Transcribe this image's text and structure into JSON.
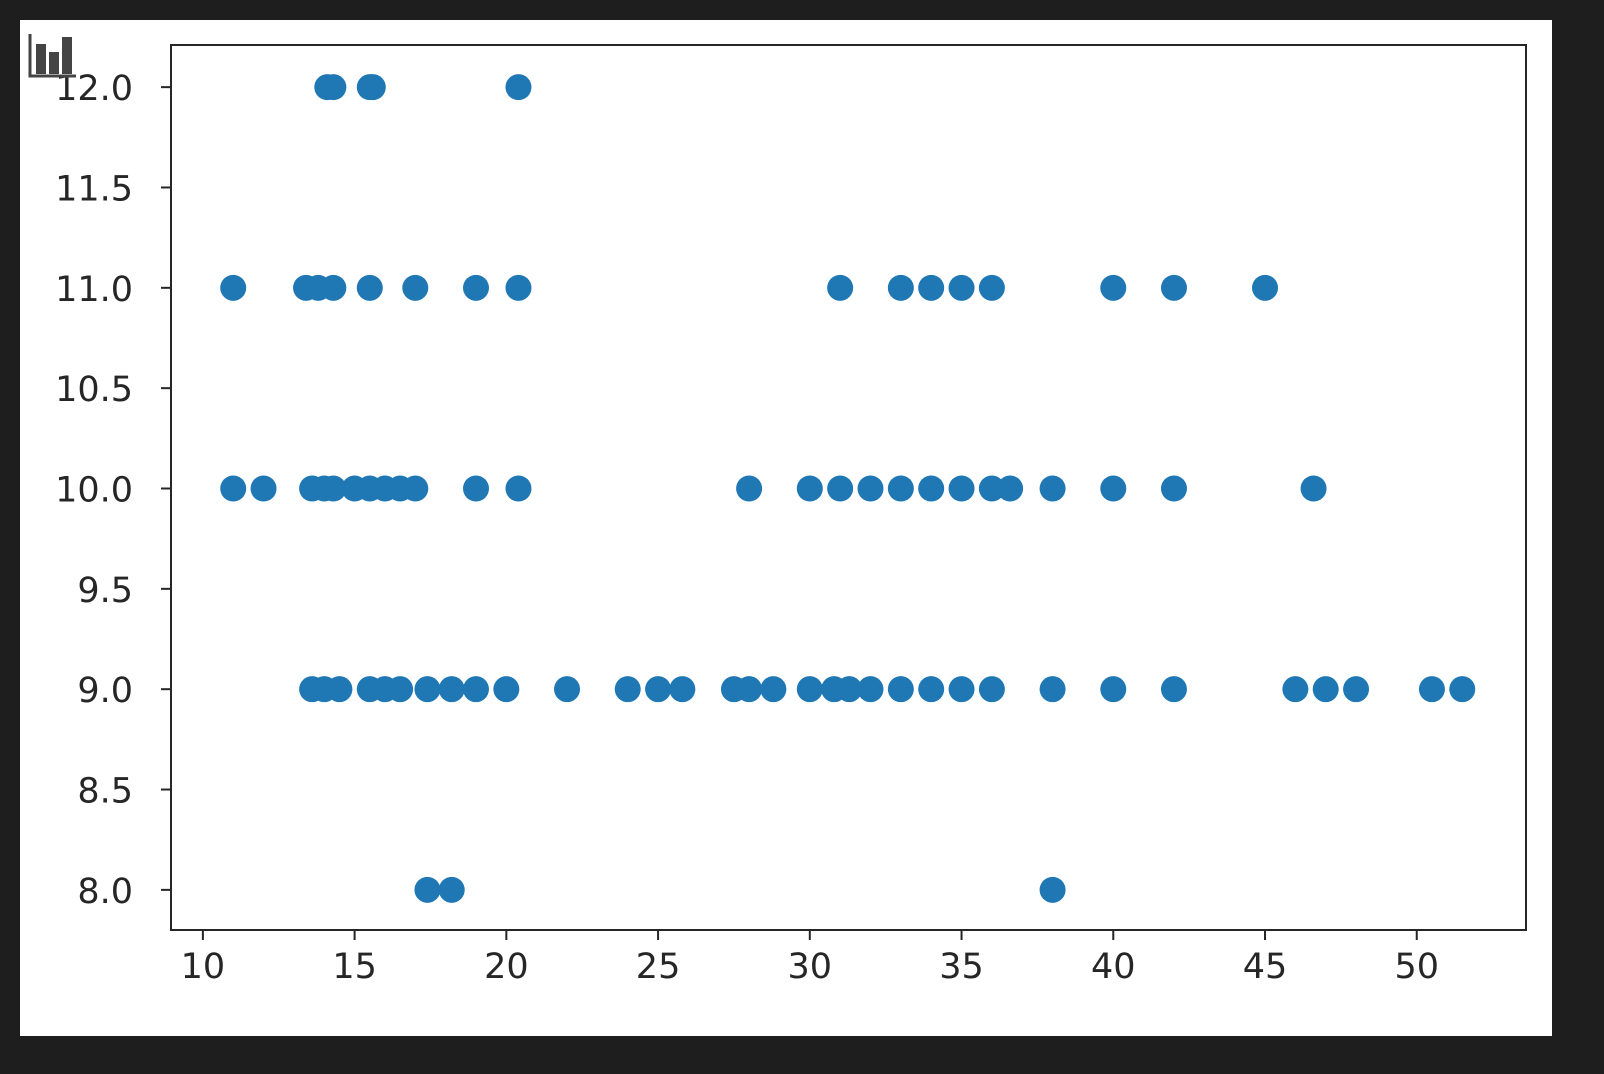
{
  "colors": {
    "marker": "#1f77b4",
    "frame": "#262626",
    "background": "#ffffff",
    "outer": "#1e1e1e"
  },
  "toolbar_icon": "bar-chart-icon",
  "chart_data": {
    "type": "scatter",
    "title": "",
    "xlabel": "",
    "ylabel": "",
    "xlim": [
      8.95,
      53.6
    ],
    "ylim": [
      7.8,
      12.21
    ],
    "grid": false,
    "xticks": [
      10,
      15,
      20,
      25,
      30,
      35,
      40,
      45,
      50
    ],
    "xtick_labels": [
      "10",
      "15",
      "20",
      "25",
      "30",
      "35",
      "40",
      "45",
      "50"
    ],
    "yticks": [
      8.0,
      8.5,
      9.0,
      9.5,
      10.0,
      10.5,
      11.0,
      11.5,
      12.0
    ],
    "ytick_labels": [
      "8.0",
      "8.5",
      "9.0",
      "9.5",
      "10.0",
      "10.5",
      "11.0",
      "11.5",
      "12.0"
    ],
    "points": [
      [
        14.1,
        12
      ],
      [
        14.3,
        12
      ],
      [
        15.5,
        12
      ],
      [
        15.6,
        12
      ],
      [
        20.4,
        12
      ],
      [
        11,
        11
      ],
      [
        13.4,
        11
      ],
      [
        13.8,
        11
      ],
      [
        14.3,
        11
      ],
      [
        15.5,
        11
      ],
      [
        17,
        11
      ],
      [
        19,
        11
      ],
      [
        20.4,
        11
      ],
      [
        31,
        11
      ],
      [
        33,
        11
      ],
      [
        34,
        11
      ],
      [
        35,
        11
      ],
      [
        36,
        11
      ],
      [
        40,
        11
      ],
      [
        42,
        11
      ],
      [
        45,
        11
      ],
      [
        11,
        10
      ],
      [
        12,
        10
      ],
      [
        13.6,
        10
      ],
      [
        14,
        10
      ],
      [
        14.3,
        10
      ],
      [
        15,
        10
      ],
      [
        15.5,
        10
      ],
      [
        16,
        10
      ],
      [
        16.5,
        10
      ],
      [
        17,
        10
      ],
      [
        19,
        10
      ],
      [
        20.4,
        10
      ],
      [
        28,
        10
      ],
      [
        30,
        10
      ],
      [
        31,
        10
      ],
      [
        32,
        10
      ],
      [
        33,
        10
      ],
      [
        34,
        10
      ],
      [
        35,
        10
      ],
      [
        36,
        10
      ],
      [
        36.6,
        10
      ],
      [
        38,
        10
      ],
      [
        40,
        10
      ],
      [
        42,
        10
      ],
      [
        46.6,
        10
      ],
      [
        13.6,
        9
      ],
      [
        14,
        9
      ],
      [
        14.5,
        9
      ],
      [
        15.5,
        9
      ],
      [
        16,
        9
      ],
      [
        16.5,
        9
      ],
      [
        17.4,
        9
      ],
      [
        18.2,
        9
      ],
      [
        19,
        9
      ],
      [
        20,
        9
      ],
      [
        22,
        9
      ],
      [
        24,
        9
      ],
      [
        25,
        9
      ],
      [
        25.8,
        9
      ],
      [
        27.5,
        9
      ],
      [
        28,
        9
      ],
      [
        28.8,
        9
      ],
      [
        30,
        9
      ],
      [
        30.8,
        9
      ],
      [
        31.3,
        9
      ],
      [
        32,
        9
      ],
      [
        33,
        9
      ],
      [
        34,
        9
      ],
      [
        35,
        9
      ],
      [
        36,
        9
      ],
      [
        38,
        9
      ],
      [
        40,
        9
      ],
      [
        42,
        9
      ],
      [
        46,
        9
      ],
      [
        47,
        9
      ],
      [
        48,
        9
      ],
      [
        50.5,
        9
      ],
      [
        51.5,
        9
      ],
      [
        17.4,
        8
      ],
      [
        18.2,
        8
      ],
      [
        38,
        8
      ]
    ]
  }
}
